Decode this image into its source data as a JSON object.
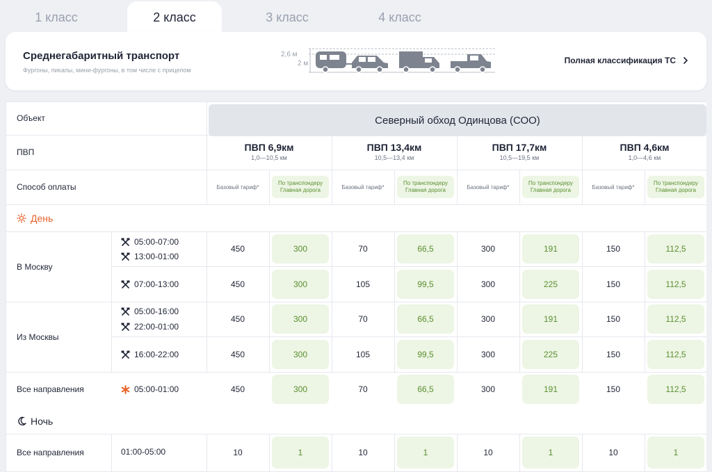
{
  "tabs": [
    {
      "label": "1 класс"
    },
    {
      "label": "2 класс"
    },
    {
      "label": "3 класс"
    },
    {
      "label": "4 класс"
    }
  ],
  "vehicle": {
    "title": "Среднегабаритный транспорт",
    "subtitle": "Фургоны, пикапы, мини-фургоны, в том числе с прицепом",
    "height_max": "2,6 м",
    "height_min": "2 м",
    "link": "Полная классификация ТС"
  },
  "table": {
    "row_labels": {
      "object": "Объект",
      "pvp": "ПВП",
      "payment": "Способ оплаты"
    },
    "object_name": "Северный обход Одинцова (СОО)",
    "pvps": [
      {
        "name": "ПВП 6,9км",
        "range": "1,0—10,5 км"
      },
      {
        "name": "ПВП 13,4км",
        "range": "10,5—13,4 км"
      },
      {
        "name": "ПВП 17,7км",
        "range": "10,5—19,5 км"
      },
      {
        "name": "ПВП 4,6км",
        "range": "1,0—4,6 км"
      }
    ],
    "payment_base": "Базовый тариф*",
    "payment_transponder_1": "По транспондеру",
    "payment_transponder_2": "Главная дорога",
    "day_label": "День",
    "night_label": "Ночь",
    "directions": {
      "to_moscow": "В Москву",
      "from_moscow": "Из Москвы",
      "all": "Все направления",
      "all_night": "Все направления"
    },
    "times": {
      "r1a": "05:00-07:00",
      "r1b": "13:00-01:00",
      "r2": "07:00-13:00",
      "r3a": "05:00-16:00",
      "r3b": "22:00-01:00",
      "r4": "16:00-22:00",
      "r5": "05:00-01:00",
      "r6": "01:00-05:00"
    },
    "rows": [
      [
        "450",
        "300",
        "70",
        "66,5",
        "300",
        "191",
        "150",
        "112,5"
      ],
      [
        "450",
        "300",
        "105",
        "99,5",
        "300",
        "225",
        "150",
        "112,5"
      ],
      [
        "450",
        "300",
        "70",
        "66,5",
        "300",
        "191",
        "150",
        "112,5"
      ],
      [
        "450",
        "300",
        "105",
        "99,5",
        "300",
        "225",
        "150",
        "112,5"
      ],
      [
        "450",
        "300",
        "70",
        "66,5",
        "300",
        "191",
        "150",
        "112,5"
      ],
      [
        "10",
        "1",
        "10",
        "1",
        "10",
        "1",
        "10",
        "1"
      ]
    ]
  },
  "colors": {
    "accent_orange": "#e8622a",
    "green_text": "#5a9030",
    "green_bg": "#edf5e4"
  }
}
